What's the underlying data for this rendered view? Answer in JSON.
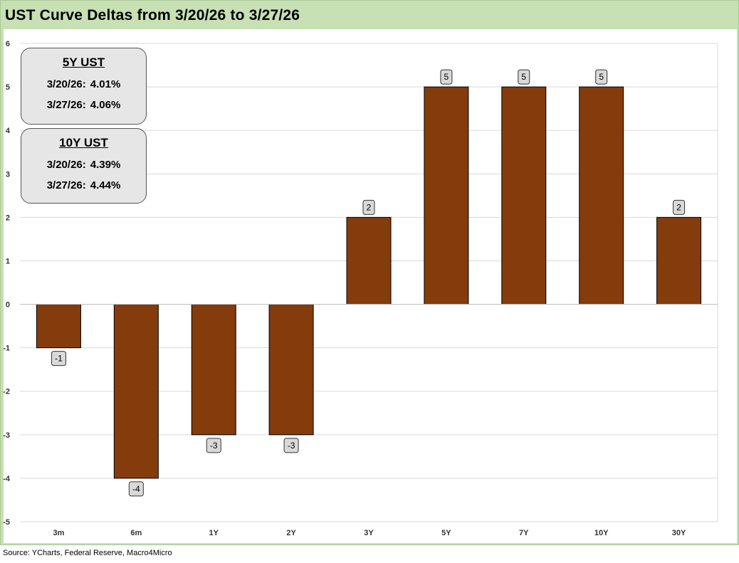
{
  "title": "UST Curve Deltas from 3/20/26 to 3/27/26",
  "source": "Source: YCharts, Federal Reserve, Macro4Micro",
  "colors": {
    "bar": "#843c0c",
    "bar_border": "#000000",
    "frame": "#c7e0b4",
    "label_box": "#d9d9d9"
  },
  "infoboxes": [
    {
      "header": "5Y UST",
      "rows": [
        {
          "date": "3/20/26:",
          "value": "4.01%"
        },
        {
          "date": "3/27/26:",
          "value": "4.06%"
        }
      ]
    },
    {
      "header": "10Y UST",
      "rows": [
        {
          "date": "3/20/26:",
          "value": "4.39%"
        },
        {
          "date": "3/27/26:",
          "value": "4.44%"
        }
      ]
    }
  ],
  "chart_data": {
    "type": "bar",
    "categories": [
      "3m",
      "6m",
      "1Y",
      "2Y",
      "3Y",
      "5Y",
      "7Y",
      "10Y",
      "30Y"
    ],
    "values": [
      -1,
      -4,
      -3,
      -3,
      2,
      5,
      5,
      5,
      2
    ],
    "data_labels": [
      "-1",
      "-4",
      "-3",
      "-3",
      "2",
      "5",
      "5",
      "5",
      "2"
    ],
    "title": "UST Curve Deltas from 3/20/26 to 3/27/26",
    "xlabel": "",
    "ylabel": "",
    "ylim": [
      -5,
      6
    ],
    "yticks": [
      -5,
      -4,
      -3,
      -2,
      -1,
      0,
      1,
      2,
      3,
      4,
      5,
      6
    ],
    "grid": true,
    "legend": "none"
  }
}
